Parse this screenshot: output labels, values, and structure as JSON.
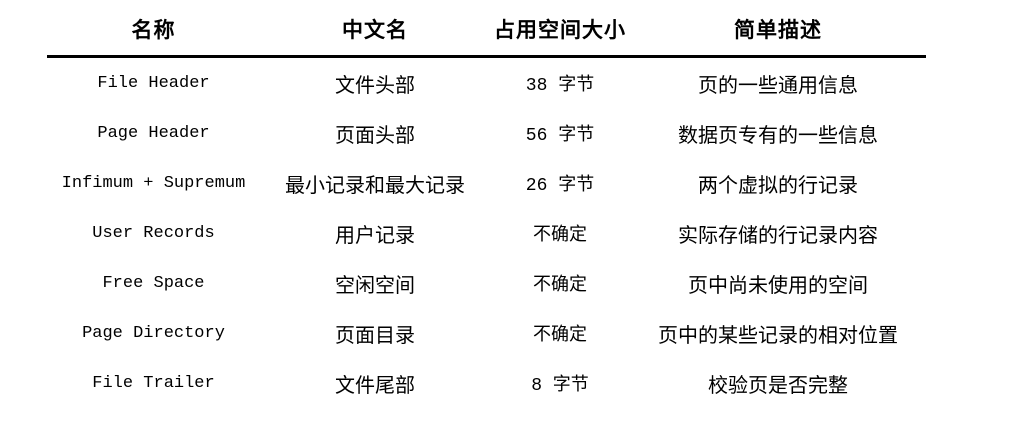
{
  "table": {
    "columns": [
      {
        "label": "名称"
      },
      {
        "label": "中文名"
      },
      {
        "label": "占用空间大小"
      },
      {
        "label": "简单描述"
      }
    ],
    "rows": [
      {
        "name": "File Header",
        "cn_name": "文件头部",
        "size": "38 字节",
        "description": "页的一些通用信息"
      },
      {
        "name": "Page Header",
        "cn_name": "页面头部",
        "size": "56 字节",
        "description": "数据页专有的一些信息"
      },
      {
        "name": "Infimum + Supremum",
        "cn_name": "最小记录和最大记录",
        "size": "26 字节",
        "description": "两个虚拟的行记录"
      },
      {
        "name": "User Records",
        "cn_name": "用户记录",
        "size": "不确定",
        "description": "实际存储的行记录内容"
      },
      {
        "name": "Free Space",
        "cn_name": "空闲空间",
        "size": "不确定",
        "description": "页中尚未使用的空间"
      },
      {
        "name": "Page Directory",
        "cn_name": "页面目录",
        "size": "不确定",
        "description": "页中的某些记录的相对位置"
      },
      {
        "name": "File Trailer",
        "cn_name": "文件尾部",
        "size": "8 字节",
        "description": "校验页是否完整"
      }
    ],
    "colors": {
      "text": "#000000",
      "header_rule": "#000000",
      "background": "#ffffff"
    }
  }
}
